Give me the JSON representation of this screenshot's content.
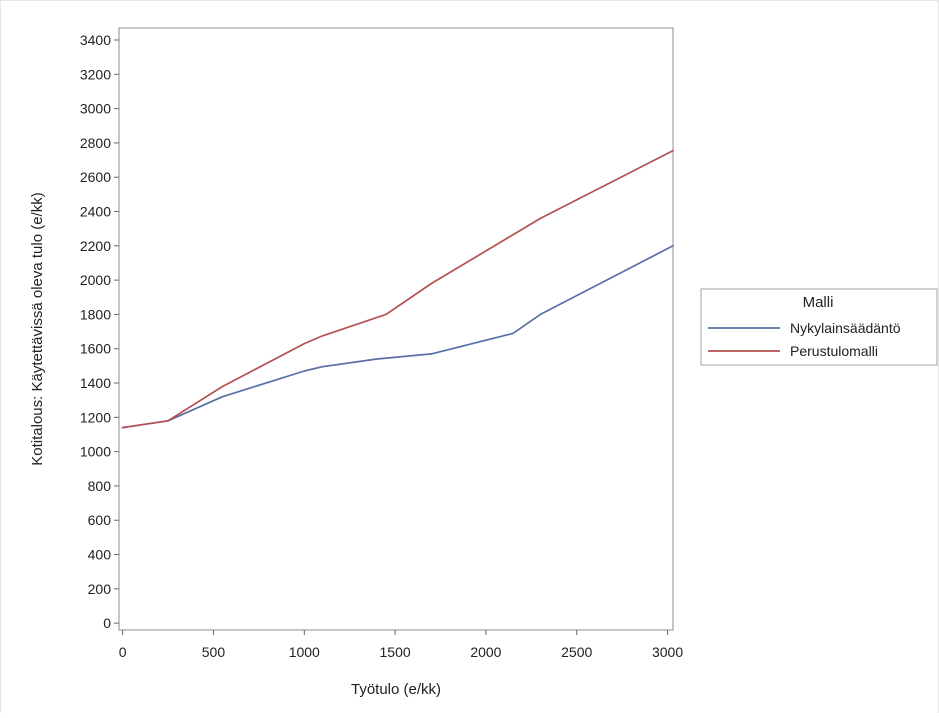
{
  "chart_data": {
    "type": "line",
    "title": "",
    "xlabel": "Työtulo (e/kk)",
    "ylabel": "Kotitalous: Käytettävissä oleva tulo (e/kk)",
    "xlim": [
      -20,
      3030
    ],
    "ylim": [
      -40,
      3470
    ],
    "x_ticks": [
      0,
      500,
      1000,
      1500,
      2000,
      2500,
      3000
    ],
    "y_ticks": [
      0,
      200,
      400,
      600,
      800,
      1000,
      1200,
      1400,
      1600,
      1800,
      2000,
      2200,
      2400,
      2600,
      2800,
      3000,
      3200,
      3400
    ],
    "grid": false,
    "legend": {
      "title": "Malli",
      "placement": "right"
    },
    "series": [
      {
        "name": "Nykylainsäädäntö",
        "color": "#5a6fa8",
        "points": [
          [
            0,
            1140
          ],
          [
            250,
            1180
          ],
          [
            550,
            1320
          ],
          [
            1000,
            1470
          ],
          [
            1100,
            1495
          ],
          [
            1400,
            1540
          ],
          [
            1700,
            1570
          ],
          [
            2150,
            1690
          ],
          [
            2300,
            1800
          ],
          [
            3030,
            2200
          ]
        ]
      },
      {
        "name": "Perustulomalli",
        "color": "#b45050",
        "points": [
          [
            0,
            1140
          ],
          [
            250,
            1180
          ],
          [
            550,
            1380
          ],
          [
            1000,
            1630
          ],
          [
            1100,
            1675
          ],
          [
            1450,
            1800
          ],
          [
            1700,
            1980
          ],
          [
            2300,
            2360
          ],
          [
            3030,
            2755
          ]
        ]
      }
    ]
  }
}
